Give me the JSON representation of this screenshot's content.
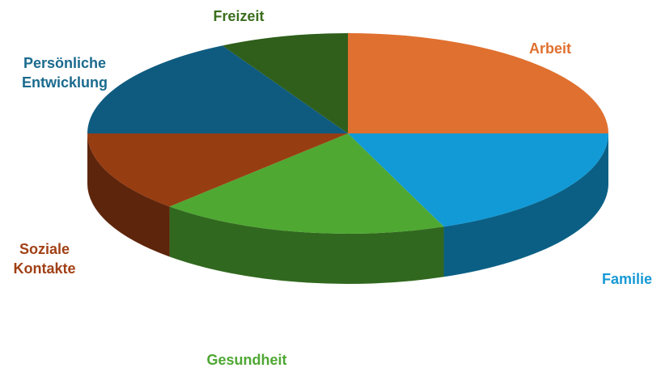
{
  "chart_data": {
    "type": "pie",
    "categories": [
      "Arbeit",
      "Familie",
      "Gesundheit",
      "Soziale Kontakte",
      "Persönliche Entwicklung",
      "Freizeit"
    ],
    "values": [
      25,
      19,
      18,
      13,
      17,
      8
    ],
    "colors": [
      "#e0702f",
      "#129ad6",
      "#4fa832",
      "#973d12",
      "#0f5b80",
      "#2f5f1b"
    ],
    "label_colors": [
      "#e0702f",
      "#1799d5",
      "#4ea832",
      "#a04015",
      "#1a6a8e",
      "#3a6e1e"
    ]
  }
}
